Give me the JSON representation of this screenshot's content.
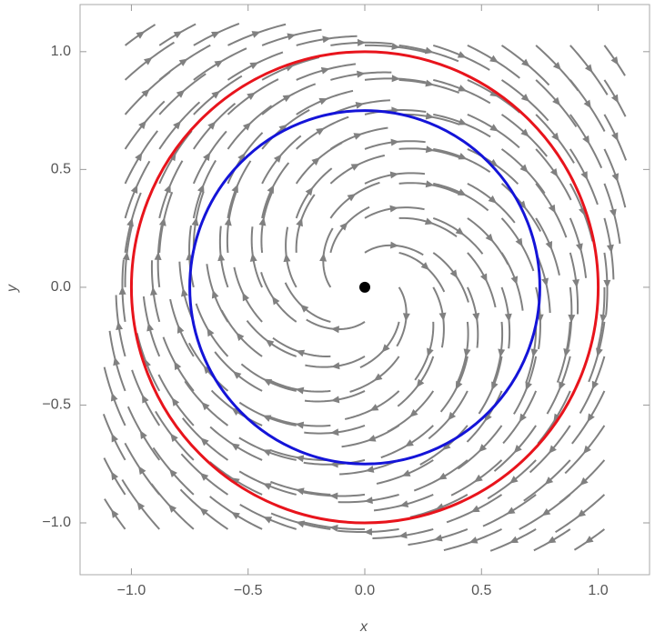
{
  "chart_data": {
    "type": "streamplot",
    "xlabel": "x",
    "ylabel": "y",
    "xlim": [
      -1.22,
      1.22
    ],
    "ylim": [
      -1.22,
      1.2
    ],
    "xticks": [
      {
        "value": -1,
        "label": "−1.0"
      },
      {
        "value": -0.5,
        "label": "−0.5"
      },
      {
        "value": 0,
        "label": "0.0"
      },
      {
        "value": 0.5,
        "label": "0.5"
      },
      {
        "value": 1,
        "label": "1.0"
      }
    ],
    "yticks": [
      {
        "value": -1,
        "label": "−1.0"
      },
      {
        "value": -0.5,
        "label": "−0.5"
      },
      {
        "value": 0,
        "label": "0.0"
      },
      {
        "value": 0.5,
        "label": "0.5"
      },
      {
        "value": 1,
        "label": "1.0"
      }
    ],
    "stream_color": "#808080",
    "circles": [
      {
        "radius": 1,
        "color": "#e8141c"
      },
      {
        "radius": 0.75,
        "color": "#1414d8"
      }
    ],
    "points": [
      {
        "x": 0,
        "y": 0,
        "color": "#000000"
      }
    ]
  }
}
